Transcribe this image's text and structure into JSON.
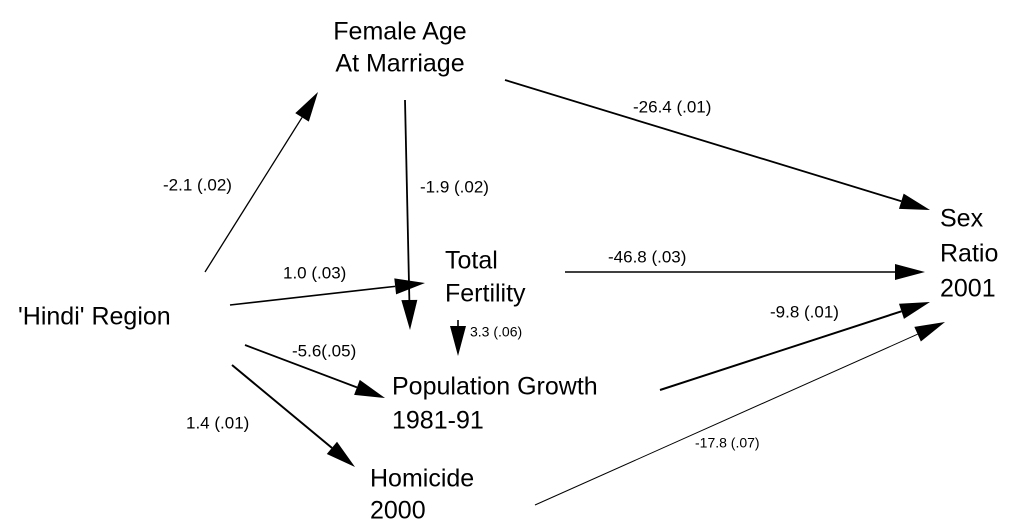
{
  "nodes": [
    {
      "lines": [
        "Female Age",
        "At Marriage"
      ]
    },
    {
      "lines": [
        "Sex",
        "Ratio",
        "2001"
      ]
    },
    {
      "lines": [
        "Total",
        "Fertility"
      ]
    },
    {
      "lines": [
        "'Hindi' Region"
      ]
    },
    {
      "lines": [
        "Population Growth",
        "1981-91"
      ]
    },
    {
      "lines": [
        "Homicide",
        "2000"
      ]
    }
  ],
  "edges": [
    {
      "label": "-2.1 (.02)"
    },
    {
      "label": "-26.4 (.01)"
    },
    {
      "label": "-1.9 (.02)"
    },
    {
      "label": "1.0 (.03)"
    },
    {
      "label": "-46.8 (.03)"
    },
    {
      "label": "3.3 (.06)"
    },
    {
      "label": "-5.6(.05)"
    },
    {
      "label": "-9.8 (.01)"
    },
    {
      "label": "1.4 (.01)"
    },
    {
      "label": "-17.8 (.07)"
    }
  ]
}
